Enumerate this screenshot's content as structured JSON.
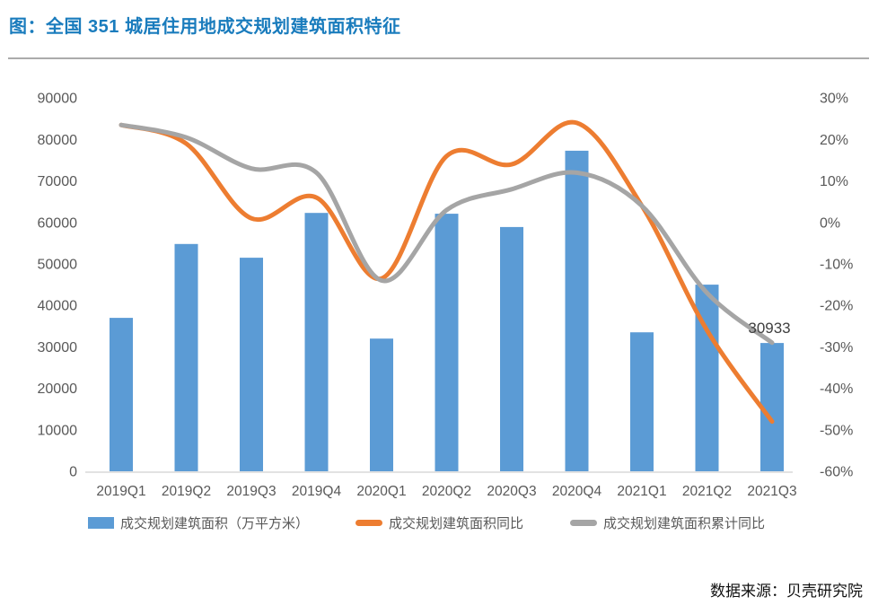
{
  "header": {
    "title": "图：全国 351 城居住用地成交规划建筑面积特征"
  },
  "footer": {
    "source": "数据来源：贝壳研究院"
  },
  "colors": {
    "title_blue": "#1a7cbd",
    "bar_blue": "#5b9bd5",
    "line_orange": "#ed7d31",
    "line_gray": "#a5a5a5",
    "axis_text": "#595959",
    "axis_line": "#d9d9d9",
    "divider_gray": "#ababab",
    "data_label_text": "#3f3f3f"
  },
  "chart_data": {
    "type": "bar",
    "subtype": "bar-line-combo",
    "grid": false,
    "legend_position": "bottom",
    "categories": [
      "2019Q1",
      "2019Q2",
      "2019Q3",
      "2019Q4",
      "2020Q1",
      "2020Q2",
      "2020Q3",
      "2020Q4",
      "2021Q1",
      "2021Q2",
      "2021Q3"
    ],
    "series": [
      {
        "name": "成交规划建筑面积（万平方米）",
        "type": "bar",
        "axis": "left",
        "color": "#5b9bd5",
        "values": [
          37000,
          54800,
          51500,
          62300,
          32000,
          62100,
          58900,
          77300,
          33500,
          45000,
          30933
        ]
      },
      {
        "name": "成交规划建筑面积同比",
        "type": "line",
        "axis": "right",
        "color": "#ed7d31",
        "unit": "percent",
        "values": [
          23.5,
          19,
          1,
          6,
          -13.5,
          16,
          14,
          24,
          4,
          -26,
          -48
        ]
      },
      {
        "name": "成交规划建筑面积累计同比",
        "type": "line",
        "axis": "right",
        "color": "#a5a5a5",
        "unit": "percent",
        "values": [
          23.5,
          20.5,
          13,
          12,
          -14,
          3,
          8,
          12,
          4,
          -17,
          -29
        ]
      }
    ],
    "left_axis": {
      "min": 0,
      "max": 90000,
      "step": 10000,
      "tick_labels": [
        "90000",
        "80000",
        "70000",
        "60000",
        "50000",
        "40000",
        "30000",
        "20000",
        "10000",
        "0"
      ],
      "tick_values": [
        90000,
        80000,
        70000,
        60000,
        50000,
        40000,
        30000,
        20000,
        10000,
        0
      ]
    },
    "right_axis": {
      "min": -60,
      "max": 30,
      "step": 10,
      "tick_labels": [
        "30%",
        "20%",
        "10%",
        "0%",
        "-10%",
        "-20%",
        "-30%",
        "-40%",
        "-50%",
        "-60%"
      ],
      "tick_values": [
        30,
        20,
        10,
        0,
        -10,
        -20,
        -30,
        -40,
        -50,
        -60
      ]
    },
    "data_label": {
      "text": "30933",
      "series": "成交规划建筑面积（万平方米）",
      "category": "2021Q3"
    }
  }
}
